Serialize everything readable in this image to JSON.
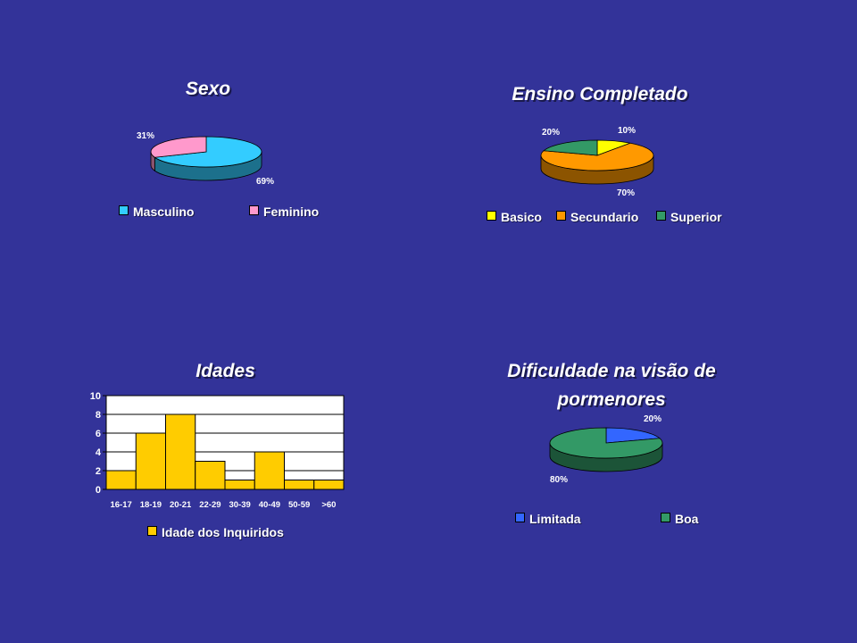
{
  "chart_data": [
    {
      "type": "pie",
      "title": "Sexo",
      "slices": [
        {
          "label": "Masculino",
          "value": 69,
          "text": "69%",
          "color": "#33ccff"
        },
        {
          "label": "Feminino",
          "value": 31,
          "text": "31%",
          "color": "#ff99cc"
        }
      ],
      "legend_placement": "bottom"
    },
    {
      "type": "pie",
      "title": "Ensino Completado",
      "slices": [
        {
          "label": "Basico",
          "value": 10,
          "text": "10%",
          "color": "#ffff00"
        },
        {
          "label": "Secundario",
          "value": 70,
          "text": "70%",
          "color": "#ff9900"
        },
        {
          "label": "Superior",
          "value": 20,
          "text": "20%",
          "color": "#339966"
        }
      ],
      "legend_placement": "bottom"
    },
    {
      "type": "bar",
      "title": "Idades",
      "categories": [
        "16-17",
        "18-19",
        "20-21",
        "22-29",
        "30-39",
        "40-49",
        "50-59",
        ">60"
      ],
      "series": [
        {
          "name": "Idade dos Inquiridos",
          "values": [
            2,
            6,
            8,
            3,
            1,
            4,
            1,
            1
          ],
          "color": "#ffcc00"
        }
      ],
      "yticks": [
        "0",
        "2",
        "4",
        "6",
        "8",
        "10"
      ],
      "ylim": [
        0,
        10
      ],
      "grid": true,
      "plot_background": "#ffffff",
      "legend_placement": "bottom"
    },
    {
      "type": "pie",
      "title": "Dificuldade na visão de pormenores",
      "title_lines": [
        "Dificuldade na visão de",
        "pormenores"
      ],
      "slices": [
        {
          "label": "Limitada",
          "value": 20,
          "text": "20%",
          "color": "#3366ff"
        },
        {
          "label": "Boa",
          "value": 80,
          "text": "80%",
          "color": "#339966"
        }
      ],
      "legend_placement": "bottom"
    }
  ]
}
